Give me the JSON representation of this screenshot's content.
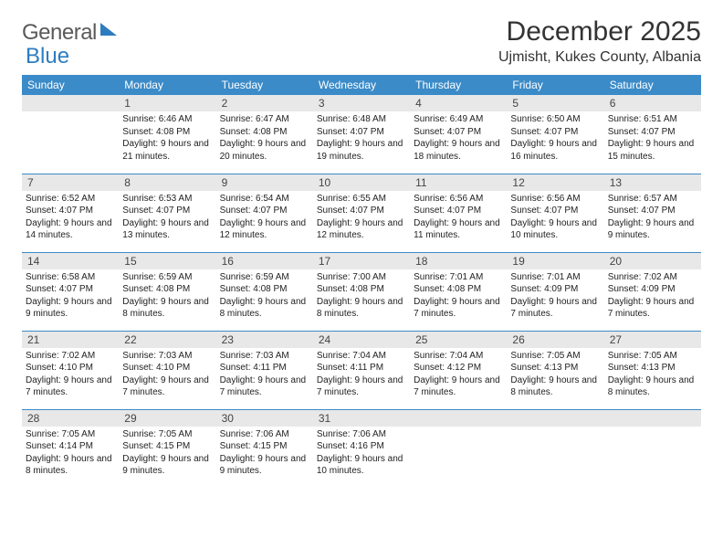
{
  "logo": {
    "part1": "General",
    "part2": "Blue"
  },
  "title": "December 2025",
  "location": "Ujmisht, Kukes County, Albania",
  "colors": {
    "header_bg": "#3b8bc8",
    "header_text": "#ffffff",
    "daynum_bg": "#e8e8e8",
    "row_divider": "#3b8bc8",
    "logo_gray": "#5a5a5a",
    "logo_blue": "#2e7cc0",
    "body_text": "#222222",
    "page_bg": "#ffffff"
  },
  "weekdays": [
    "Sunday",
    "Monday",
    "Tuesday",
    "Wednesday",
    "Thursday",
    "Friday",
    "Saturday"
  ],
  "weeks": [
    [
      null,
      {
        "n": "1",
        "sr": "6:46 AM",
        "ss": "4:08 PM",
        "dl": "9 hours and 21 minutes."
      },
      {
        "n": "2",
        "sr": "6:47 AM",
        "ss": "4:08 PM",
        "dl": "9 hours and 20 minutes."
      },
      {
        "n": "3",
        "sr": "6:48 AM",
        "ss": "4:07 PM",
        "dl": "9 hours and 19 minutes."
      },
      {
        "n": "4",
        "sr": "6:49 AM",
        "ss": "4:07 PM",
        "dl": "9 hours and 18 minutes."
      },
      {
        "n": "5",
        "sr": "6:50 AM",
        "ss": "4:07 PM",
        "dl": "9 hours and 16 minutes."
      },
      {
        "n": "6",
        "sr": "6:51 AM",
        "ss": "4:07 PM",
        "dl": "9 hours and 15 minutes."
      }
    ],
    [
      {
        "n": "7",
        "sr": "6:52 AM",
        "ss": "4:07 PM",
        "dl": "9 hours and 14 minutes."
      },
      {
        "n": "8",
        "sr": "6:53 AM",
        "ss": "4:07 PM",
        "dl": "9 hours and 13 minutes."
      },
      {
        "n": "9",
        "sr": "6:54 AM",
        "ss": "4:07 PM",
        "dl": "9 hours and 12 minutes."
      },
      {
        "n": "10",
        "sr": "6:55 AM",
        "ss": "4:07 PM",
        "dl": "9 hours and 12 minutes."
      },
      {
        "n": "11",
        "sr": "6:56 AM",
        "ss": "4:07 PM",
        "dl": "9 hours and 11 minutes."
      },
      {
        "n": "12",
        "sr": "6:56 AM",
        "ss": "4:07 PM",
        "dl": "9 hours and 10 minutes."
      },
      {
        "n": "13",
        "sr": "6:57 AM",
        "ss": "4:07 PM",
        "dl": "9 hours and 9 minutes."
      }
    ],
    [
      {
        "n": "14",
        "sr": "6:58 AM",
        "ss": "4:07 PM",
        "dl": "9 hours and 9 minutes."
      },
      {
        "n": "15",
        "sr": "6:59 AM",
        "ss": "4:08 PM",
        "dl": "9 hours and 8 minutes."
      },
      {
        "n": "16",
        "sr": "6:59 AM",
        "ss": "4:08 PM",
        "dl": "9 hours and 8 minutes."
      },
      {
        "n": "17",
        "sr": "7:00 AM",
        "ss": "4:08 PM",
        "dl": "9 hours and 8 minutes."
      },
      {
        "n": "18",
        "sr": "7:01 AM",
        "ss": "4:08 PM",
        "dl": "9 hours and 7 minutes."
      },
      {
        "n": "19",
        "sr": "7:01 AM",
        "ss": "4:09 PM",
        "dl": "9 hours and 7 minutes."
      },
      {
        "n": "20",
        "sr": "7:02 AM",
        "ss": "4:09 PM",
        "dl": "9 hours and 7 minutes."
      }
    ],
    [
      {
        "n": "21",
        "sr": "7:02 AM",
        "ss": "4:10 PM",
        "dl": "9 hours and 7 minutes."
      },
      {
        "n": "22",
        "sr": "7:03 AM",
        "ss": "4:10 PM",
        "dl": "9 hours and 7 minutes."
      },
      {
        "n": "23",
        "sr": "7:03 AM",
        "ss": "4:11 PM",
        "dl": "9 hours and 7 minutes."
      },
      {
        "n": "24",
        "sr": "7:04 AM",
        "ss": "4:11 PM",
        "dl": "9 hours and 7 minutes."
      },
      {
        "n": "25",
        "sr": "7:04 AM",
        "ss": "4:12 PM",
        "dl": "9 hours and 7 minutes."
      },
      {
        "n": "26",
        "sr": "7:05 AM",
        "ss": "4:13 PM",
        "dl": "9 hours and 8 minutes."
      },
      {
        "n": "27",
        "sr": "7:05 AM",
        "ss": "4:13 PM",
        "dl": "9 hours and 8 minutes."
      }
    ],
    [
      {
        "n": "28",
        "sr": "7:05 AM",
        "ss": "4:14 PM",
        "dl": "9 hours and 8 minutes."
      },
      {
        "n": "29",
        "sr": "7:05 AM",
        "ss": "4:15 PM",
        "dl": "9 hours and 9 minutes."
      },
      {
        "n": "30",
        "sr": "7:06 AM",
        "ss": "4:15 PM",
        "dl": "9 hours and 9 minutes."
      },
      {
        "n": "31",
        "sr": "7:06 AM",
        "ss": "4:16 PM",
        "dl": "9 hours and 10 minutes."
      },
      null,
      null,
      null
    ]
  ],
  "labels": {
    "sunrise": "Sunrise:",
    "sunset": "Sunset:",
    "daylight": "Daylight:"
  }
}
